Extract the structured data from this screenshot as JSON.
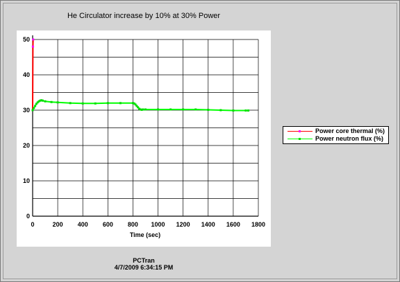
{
  "window": {
    "footer_line1": "PCTran",
    "footer_line2": "4/7/2009 6:34:15 PM"
  },
  "chart_data": {
    "type": "line",
    "title": "He Circulator increase by 10% at 30% Power",
    "xlabel": "Time (sec)",
    "ylabel": "",
    "xlim": [
      0,
      1800
    ],
    "ylim": [
      0,
      50
    ],
    "xticks": [
      0,
      200,
      400,
      600,
      800,
      1000,
      1200,
      1400,
      1600,
      1800
    ],
    "yticks": [
      0,
      10,
      20,
      30,
      40,
      50
    ],
    "grid": true,
    "legend_position": "right",
    "series": [
      {
        "name": "Power core thermal (%)",
        "color": "#ff0000",
        "marker_color": "#ff00ff",
        "x": [
          0,
          2,
          4
        ],
        "y": [
          30,
          48,
          50
        ]
      },
      {
        "name": "Power neutron flux (%)",
        "color": "#00ff00",
        "marker_color": "#00dd00",
        "x": [
          0,
          10,
          20,
          30,
          40,
          50,
          60,
          70,
          80,
          100,
          150,
          200,
          300,
          400,
          500,
          600,
          700,
          800,
          810,
          820,
          830,
          840,
          850,
          860,
          870,
          880,
          900,
          1000,
          1100,
          1200,
          1300,
          1400,
          1500,
          1600,
          1700,
          1720
        ],
        "y": [
          30,
          30.6,
          31.2,
          31.8,
          32.2,
          32.5,
          32.7,
          32.8,
          32.7,
          32.5,
          32.3,
          32.2,
          32.0,
          31.9,
          31.9,
          32.0,
          32.0,
          32.0,
          31.9,
          31.6,
          31.2,
          30.8,
          30.4,
          30.2,
          30.1,
          30.2,
          30.2,
          30.2,
          30.2,
          30.2,
          30.2,
          30.1,
          30.0,
          29.9,
          29.9,
          29.9
        ]
      }
    ]
  }
}
